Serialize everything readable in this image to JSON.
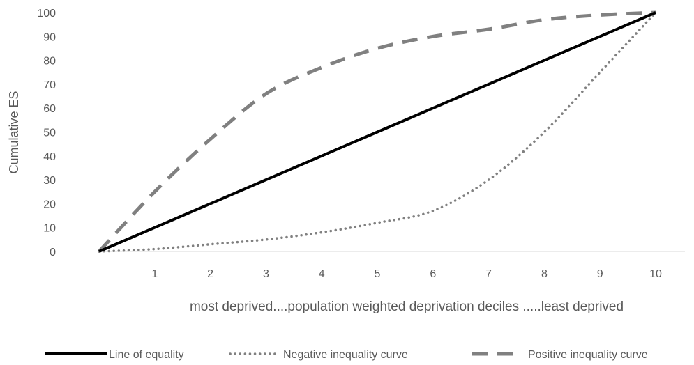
{
  "chart_data": {
    "type": "line",
    "xlabel": "most deprived....population weighted deprivation deciles .....least deprived",
    "ylabel": "Cumulative ES",
    "xlim": [
      0,
      10
    ],
    "ylim": [
      0,
      100
    ],
    "x_ticks": [
      1,
      2,
      3,
      4,
      5,
      6,
      7,
      8,
      9,
      10
    ],
    "y_ticks": [
      0,
      10,
      20,
      30,
      40,
      50,
      60,
      70,
      80,
      90,
      100
    ],
    "grid": false,
    "legend_position": "bottom",
    "series": [
      {
        "name": "Line of equality",
        "style": "solid",
        "color": "#000000",
        "x": [
          0,
          1,
          2,
          3,
          4,
          5,
          6,
          7,
          8,
          9,
          10
        ],
        "y": [
          0,
          10,
          20,
          30,
          40,
          50,
          60,
          70,
          80,
          90,
          100
        ]
      },
      {
        "name": "Negative inequality curve",
        "style": "dotted",
        "color": "#808080",
        "x": [
          0,
          1,
          2,
          3,
          4,
          5,
          6,
          7,
          8,
          9,
          10
        ],
        "y": [
          0,
          1,
          3,
          5,
          8,
          12,
          17,
          30,
          50,
          75,
          100
        ]
      },
      {
        "name": "Positive inequality curve",
        "style": "dashed",
        "color": "#808080",
        "x": [
          0,
          1,
          2,
          3,
          4,
          5,
          6,
          7,
          8,
          9,
          10
        ],
        "y": [
          0,
          25,
          47,
          66,
          77,
          85,
          90,
          93,
          97,
          99,
          100
        ]
      }
    ]
  }
}
